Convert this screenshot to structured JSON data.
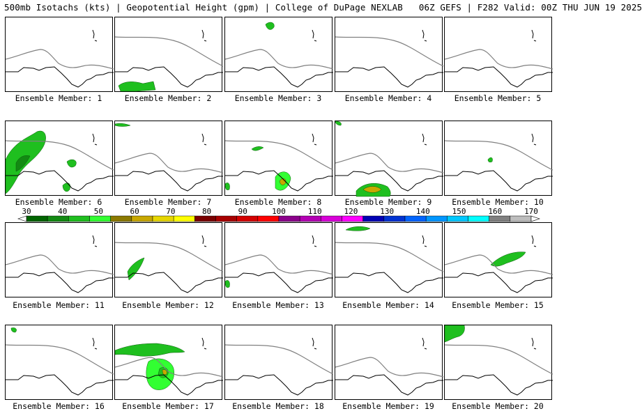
{
  "header": {
    "left": "500mb Isotachs (kts) | Geopotential Height (gpm) | College of DuPage NEXLAB",
    "right": "06Z GEFS | F282 Valid: 00Z THU JUN 19 2025"
  },
  "colorbar": {
    "ticks": [
      "30",
      "40",
      "50",
      "60",
      "70",
      "80",
      "90",
      "100",
      "110",
      "120",
      "130",
      "140",
      "150",
      "160",
      "170"
    ],
    "colors": [
      "#006400",
      "#138a13",
      "#1fbf1f",
      "#32ff32",
      "#8c7a00",
      "#c8a800",
      "#e6d600",
      "#ffff00",
      "#7a0000",
      "#a80000",
      "#d40000",
      "#ff0000",
      "#8b008b",
      "#b400b4",
      "#d800d8",
      "#ff00ff",
      "#0000b4",
      "#0032d2",
      "#0064ff",
      "#0096ff",
      "#00c8ff",
      "#00ffff",
      "#808080",
      "#bdbdbd"
    ],
    "outline": "#000000"
  },
  "colors": {
    "coast": "#000000",
    "contour": "#808080",
    "green_light": "#32ff32",
    "green_mid": "#1fbf1f",
    "green_dark": "#138a13",
    "yellow_core": "#c8a800"
  },
  "panels": [
    {
      "label": "Ensemble Member: 1"
    },
    {
      "label": "Ensemble Member: 2"
    },
    {
      "label": "Ensemble Member: 3"
    },
    {
      "label": "Ensemble Member: 4"
    },
    {
      "label": "Ensemble Member: 5"
    },
    {
      "label": "Ensemble Member: 6"
    },
    {
      "label": "Ensemble Member: 7"
    },
    {
      "label": "Ensemble Member: 8"
    },
    {
      "label": "Ensemble Member: 9"
    },
    {
      "label": "Ensemble Member: 10"
    },
    {
      "label": "Ensemble Member: 11"
    },
    {
      "label": "Ensemble Member: 12"
    },
    {
      "label": "Ensemble Member: 13"
    },
    {
      "label": "Ensemble Member: 14"
    },
    {
      "label": "Ensemble Member: 15"
    },
    {
      "label": "Ensemble Member: 16"
    },
    {
      "label": "Ensemble Member: 17"
    },
    {
      "label": "Ensemble Member: 18"
    },
    {
      "label": "Ensemble Member: 19"
    },
    {
      "label": "Ensemble Member: 20"
    }
  ]
}
